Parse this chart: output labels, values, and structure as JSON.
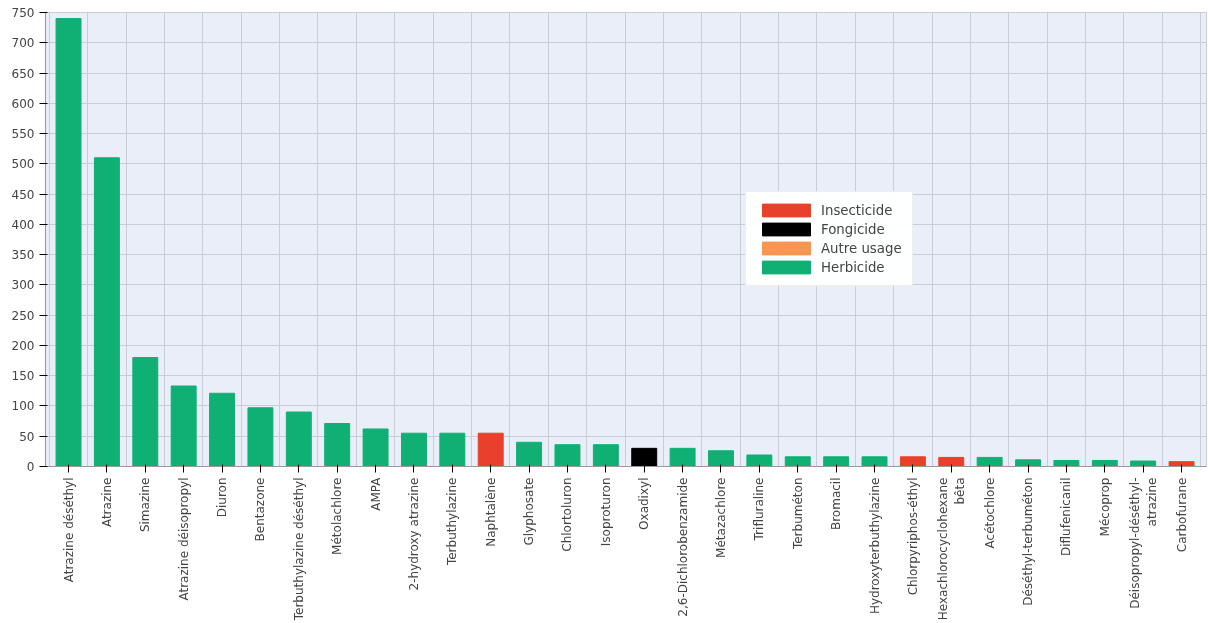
{
  "chart_data": {
    "type": "bar",
    "categories": [
      "Atrazine déséthyl",
      "Atrazine",
      "Simazine",
      "Atrazine déisopropyl",
      "Diuron",
      "Bentazone",
      "Terbuthylazine déséthyl",
      "Métolachlore",
      "AMPA",
      "2-hydroxy atrazine",
      "Terbuthylazine",
      "Naphtalène",
      "Glyphosate",
      "Chlortoluron",
      "Isoproturon",
      "Oxadixyl",
      "2,6-Dichlorobenzamide",
      "Métazachlore",
      "Trifluraline",
      "Terbuméton",
      "Bromacil",
      "Hydroxyterbuthylazine",
      "Chlorpyriphos-éthyl",
      "Hexachlorocyclohexane\nbêta",
      "Acétochlore",
      "Déséthyl-terbuméton",
      "Diflufenicanil",
      "Mécoprop",
      "Déisopropyl-déséthyl-\natrazine",
      "Carbofurane"
    ],
    "series": [
      {
        "name": "Insecticide",
        "color": "#e8402a",
        "values": [
          null,
          null,
          null,
          null,
          null,
          null,
          null,
          null,
          null,
          null,
          null,
          55,
          null,
          null,
          null,
          null,
          null,
          null,
          null,
          null,
          null,
          null,
          16,
          15,
          null,
          null,
          null,
          null,
          null,
          8
        ]
      },
      {
        "name": "Fongicide",
        "color": "#000000",
        "values": [
          null,
          null,
          null,
          null,
          null,
          null,
          null,
          null,
          null,
          null,
          null,
          null,
          null,
          null,
          null,
          30,
          null,
          null,
          null,
          null,
          null,
          null,
          null,
          null,
          null,
          null,
          null,
          null,
          null,
          null
        ]
      },
      {
        "name": "Autre usage",
        "color": "#f79552",
        "values": [
          null,
          null,
          null,
          null,
          null,
          null,
          null,
          null,
          null,
          null,
          null,
          null,
          null,
          null,
          null,
          null,
          null,
          null,
          null,
          null,
          null,
          null,
          null,
          null,
          null,
          null,
          null,
          null,
          null,
          null
        ]
      },
      {
        "name": "Herbicide",
        "color": "#10b075",
        "values": [
          740,
          510,
          180,
          133,
          121,
          97,
          90,
          71,
          62,
          55,
          55,
          null,
          40,
          36,
          36,
          null,
          30,
          26,
          19,
          16,
          16,
          16,
          null,
          null,
          15,
          11,
          10,
          10,
          9,
          null
        ]
      }
    ],
    "ylim": [
      0,
      750
    ],
    "yticks": [
      0,
      50,
      100,
      150,
      200,
      250,
      300,
      350,
      400,
      450,
      500,
      550,
      600,
      650,
      700,
      750
    ],
    "grid": true,
    "legend": "right"
  }
}
